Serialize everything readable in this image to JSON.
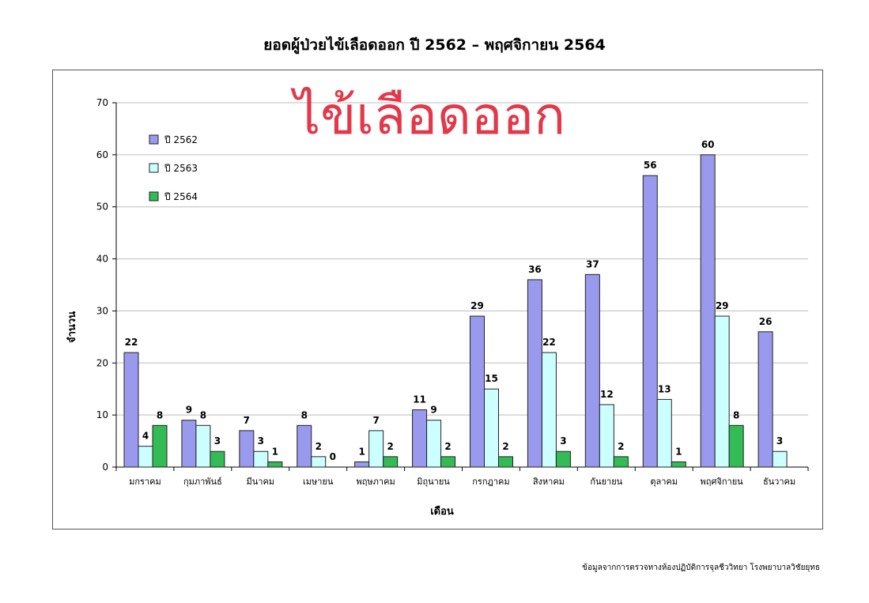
{
  "title": "ยอดผู้ป่วยไข้เลือดออก ปี 2562 – พฤศจิกายน 2564",
  "footer": "ข้อมูลจากการตรวจทางห้องปฏิบัติการจุลชีววิทยา โรงพยาบาลวิชัยยุทธ",
  "chart_data": {
    "type": "bar",
    "overlay_text": "ไข้เลือดออก",
    "xlabel": "เดือน",
    "ylabel": "จำนวน",
    "ylim": [
      0,
      70
    ],
    "yticks": [
      0,
      10,
      20,
      30,
      40,
      50,
      60,
      70
    ],
    "grid": true,
    "legend_position": "top-left",
    "categories": [
      "มกราคม",
      "กุมภาพันธ์",
      "มีนาคม",
      "เมษายน",
      "พฤษภาคม",
      "มิถุนายน",
      "กรกฎาคม",
      "สิงหาคม",
      "กันยายน",
      "ตุลาคม",
      "พฤศจิกายน",
      "ธันวาคม"
    ],
    "series": [
      {
        "name": "ปี 2562",
        "color": "#9999ee",
        "values": [
          22,
          9,
          7,
          8,
          1,
          11,
          29,
          36,
          37,
          56,
          60,
          26
        ]
      },
      {
        "name": "ปี 2563",
        "color": "#ccffff",
        "values": [
          4,
          8,
          3,
          2,
          7,
          9,
          15,
          22,
          12,
          13,
          29,
          3
        ]
      },
      {
        "name": "ปี 2564",
        "color": "#33bb55",
        "values": [
          8,
          3,
          1,
          0,
          2,
          2,
          2,
          3,
          2,
          1,
          8,
          null
        ]
      }
    ]
  }
}
